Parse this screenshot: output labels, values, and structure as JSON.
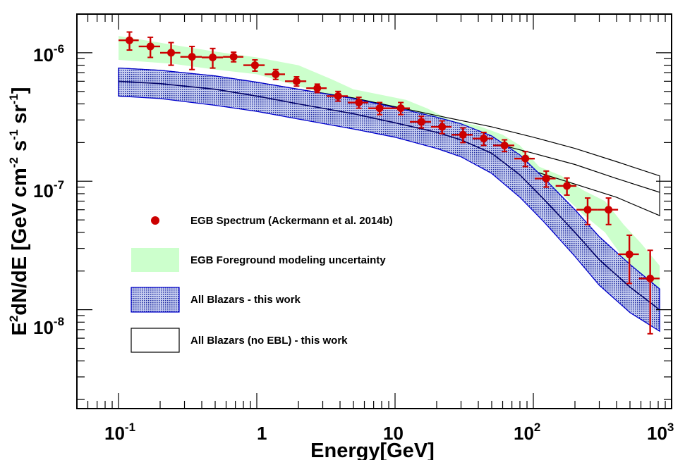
{
  "chart_data": {
    "type": "scatter",
    "title": "",
    "xlabel": "Energy[GeV]",
    "ylabel": {
      "base": "E",
      "sup1": "2",
      "mid1": "dN/dE [GeV cm",
      "sup2": "-2",
      "mid2": " s",
      "sup3": "-1",
      "mid3": " sr",
      "sup4": "-1",
      "end": "]"
    },
    "xscale": "log",
    "yscale": "log",
    "xlim": [
      0.05,
      1000
    ],
    "ylim": [
      1.7e-09,
      2e-06
    ],
    "grid": false,
    "legend_position": "left",
    "x_tick_labels": [
      {
        "value": 0.1,
        "base": "10",
        "exp": "-1"
      },
      {
        "value": 1,
        "base": "1",
        "exp": ""
      },
      {
        "value": 10,
        "base": "10",
        "exp": ""
      },
      {
        "value": 100,
        "base": "10",
        "exp": "2"
      },
      {
        "value": 1000,
        "base": "10",
        "exp": "3"
      }
    ],
    "y_tick_labels": [
      {
        "value": 1e-08,
        "base": "10",
        "exp": "-8"
      },
      {
        "value": 1e-07,
        "base": "10",
        "exp": "-7"
      },
      {
        "value": 1e-06,
        "base": "10",
        "exp": "-6"
      }
    ],
    "colors": {
      "data_points": "#cc0000",
      "foreground_band": "#ccffcc",
      "blazar_band_fill": "#7f8fd0",
      "blazar_band_edge": "#0000cc",
      "blazar_band_center": "#000066",
      "no_ebl_band": "#000000"
    },
    "series": [
      {
        "name": "EGB Spectrum (Ackermann et al. 2014b)",
        "kind": "points",
        "points": [
          {
            "x": 0.12,
            "y": 1.25e-06,
            "xlo": 0.1,
            "xhi": 0.14,
            "ylo": 1.05e-06,
            "yhi": 1.45e-06
          },
          {
            "x": 0.17,
            "y": 1.12e-06,
            "xlo": 0.14,
            "xhi": 0.2,
            "ylo": 9.2e-07,
            "yhi": 1.32e-06
          },
          {
            "x": 0.24,
            "y": 1e-06,
            "xlo": 0.2,
            "xhi": 0.28,
            "ylo": 8e-07,
            "yhi": 1.2e-06
          },
          {
            "x": 0.34,
            "y": 9.3e-07,
            "xlo": 0.28,
            "xhi": 0.4,
            "ylo": 7.4e-07,
            "yhi": 1.12e-06
          },
          {
            "x": 0.48,
            "y": 9.2e-07,
            "xlo": 0.4,
            "xhi": 0.57,
            "ylo": 7.6e-07,
            "yhi": 1.08e-06
          },
          {
            "x": 0.68,
            "y": 9.3e-07,
            "xlo": 0.57,
            "xhi": 0.8,
            "ylo": 8.5e-07,
            "yhi": 1.01e-06
          },
          {
            "x": 0.97,
            "y": 8e-07,
            "xlo": 0.8,
            "xhi": 1.14,
            "ylo": 7.2e-07,
            "yhi": 8.8e-07
          },
          {
            "x": 1.37,
            "y": 6.8e-07,
            "xlo": 1.14,
            "xhi": 1.6,
            "ylo": 6.2e-07,
            "yhi": 7.4e-07
          },
          {
            "x": 1.94,
            "y": 6e-07,
            "xlo": 1.6,
            "xhi": 2.28,
            "ylo": 5.5e-07,
            "yhi": 6.5e-07
          },
          {
            "x": 2.74,
            "y": 5.3e-07,
            "xlo": 2.28,
            "xhi": 3.2,
            "ylo": 4.9e-07,
            "yhi": 5.7e-07
          },
          {
            "x": 3.87,
            "y": 4.6e-07,
            "xlo": 3.2,
            "xhi": 4.55,
            "ylo": 4.2e-07,
            "yhi": 5e-07
          },
          {
            "x": 5.47,
            "y": 4.1e-07,
            "xlo": 4.55,
            "xhi": 6.4,
            "ylo": 3.7e-07,
            "yhi": 4.5e-07
          },
          {
            "x": 7.73,
            "y": 3.7e-07,
            "xlo": 6.4,
            "xhi": 9.1,
            "ylo": 3.3e-07,
            "yhi": 4.1e-07
          },
          {
            "x": 11.0,
            "y": 3.7e-07,
            "xlo": 9.1,
            "xhi": 12.8,
            "ylo": 3.3e-07,
            "yhi": 4.1e-07
          },
          {
            "x": 15.5,
            "y": 2.9e-07,
            "xlo": 12.8,
            "xhi": 18.2,
            "ylo": 2.6e-07,
            "yhi": 3.2e-07
          },
          {
            "x": 21.9,
            "y": 2.65e-07,
            "xlo": 18.2,
            "xhi": 25.6,
            "ylo": 2.35e-07,
            "yhi": 2.95e-07
          },
          {
            "x": 31.0,
            "y": 2.3e-07,
            "xlo": 25.6,
            "xhi": 36.4,
            "ylo": 2e-07,
            "yhi": 2.6e-07
          },
          {
            "x": 43.8,
            "y": 2.15e-07,
            "xlo": 36.4,
            "xhi": 51.2,
            "ylo": 1.9e-07,
            "yhi": 2.4e-07
          },
          {
            "x": 61.9,
            "y": 1.9e-07,
            "xlo": 51.2,
            "xhi": 72.8,
            "ylo": 1.7e-07,
            "yhi": 2.1e-07
          },
          {
            "x": 87.5,
            "y": 1.5e-07,
            "xlo": 72.8,
            "xhi": 102.4,
            "ylo": 1.3e-07,
            "yhi": 1.7e-07
          },
          {
            "x": 124,
            "y": 1.05e-07,
            "xlo": 102.4,
            "xhi": 145,
            "ylo": 9e-08,
            "yhi": 1.2e-07
          },
          {
            "x": 175,
            "y": 9.2e-08,
            "xlo": 145,
            "xhi": 205,
            "ylo": 7.8e-08,
            "yhi": 1.06e-07
          },
          {
            "x": 247,
            "y": 6e-08,
            "xlo": 205,
            "xhi": 290,
            "ylo": 4.6e-08,
            "yhi": 7.4e-08
          },
          {
            "x": 350,
            "y": 6e-08,
            "xlo": 290,
            "xhi": 410,
            "ylo": 4.6e-08,
            "yhi": 7.4e-08
          },
          {
            "x": 495,
            "y": 2.7e-08,
            "xlo": 410,
            "xhi": 580,
            "ylo": 1.6e-08,
            "yhi": 3.8e-08
          },
          {
            "x": 700,
            "y": 1.75e-08,
            "xlo": 580,
            "xhi": 820,
            "ylo": 6.5e-09,
            "yhi": 2.9e-08
          }
        ]
      },
      {
        "name": "EGB Foreground modeling uncertainty",
        "kind": "band",
        "x": [
          0.1,
          0.25,
          0.5,
          1.0,
          2.0,
          3.5,
          5.0,
          8.0,
          12.0,
          17.0,
          25.0,
          40.0,
          60.0,
          80.0,
          110.0,
          160.0,
          230.0,
          330.0,
          450.0,
          600.0,
          820.0
        ],
        "ylo": [
          8.8e-07,
          8.2e-07,
          7.4e-07,
          6.8e-07,
          5.5e-07,
          4.6e-07,
          4e-07,
          3.4e-07,
          3e-07,
          2.7e-07,
          2.4e-07,
          2e-07,
          1.7e-07,
          1.4e-07,
          1e-07,
          8e-08,
          5.5e-08,
          4e-08,
          2.5e-08,
          1.8e-08,
          1.2e-08
        ],
        "yhi": [
          1.35e-06,
          1.15e-06,
          1.02e-06,
          9.2e-07,
          8e-07,
          6.2e-07,
          5.2e-07,
          4.7e-07,
          4.3e-07,
          3.7e-07,
          3e-07,
          2.7e-07,
          2.3e-07,
          1.9e-07,
          1.3e-07,
          1.1e-07,
          8.5e-08,
          7e-08,
          4.6e-08,
          3.3e-08,
          2.2e-08
        ]
      },
      {
        "name": "All Blazars - this work",
        "kind": "band",
        "x": [
          0.1,
          0.2,
          0.5,
          1.0,
          2.0,
          5.0,
          10.0,
          20.0,
          30.0,
          50.0,
          80.0,
          120.0,
          200.0,
          300.0,
          500.0,
          820.0
        ],
        "ylo": [
          4.6e-07,
          4.4e-07,
          3.9e-07,
          3.5e-07,
          3.05e-07,
          2.55e-07,
          2.2e-07,
          1.8e-07,
          1.55e-07,
          1.15e-07,
          7.5e-08,
          4.8e-08,
          2.6e-08,
          1.55e-08,
          9.5e-09,
          6.8e-09
        ],
        "ymid": [
          6e-07,
          5.75e-07,
          5.2e-07,
          4.6e-07,
          4e-07,
          3.35e-07,
          2.85e-07,
          2.4e-07,
          2.1e-07,
          1.65e-07,
          1.12e-07,
          7.2e-08,
          4e-08,
          2.45e-08,
          1.5e-08,
          1e-08
        ],
        "yhi": [
          7.6e-07,
          7.3e-07,
          6.6e-07,
          5.9e-07,
          5.2e-07,
          4.4e-07,
          3.75e-07,
          3.15e-07,
          2.8e-07,
          2.25e-07,
          1.6e-07,
          1.05e-07,
          6e-08,
          3.7e-08,
          2.25e-08,
          1.45e-08
        ]
      },
      {
        "name": "All Blazars (no EBL) - this work",
        "kind": "band",
        "x": [
          0.1,
          0.2,
          0.5,
          1.0,
          2.0,
          5.0,
          10.0,
          20.0,
          50.0,
          100.0,
          200.0,
          400.0,
          820.0
        ],
        "ylo": [
          4.6e-07,
          4.45e-07,
          3.95e-07,
          3.55e-07,
          3.1e-07,
          2.6e-07,
          2.25e-07,
          1.9e-07,
          1.5e-07,
          1.2e-07,
          9.5e-08,
          7.5e-08,
          5.4e-08
        ],
        "ymid": [
          6e-07,
          5.75e-07,
          5.2e-07,
          4.6e-07,
          4e-07,
          3.4e-07,
          2.9e-07,
          2.5e-07,
          2e-07,
          1.65e-07,
          1.35e-07,
          1.05e-07,
          8.2e-08
        ],
        "yhi": [
          7.6e-07,
          7.3e-07,
          6.6e-07,
          5.9e-07,
          5.2e-07,
          4.45e-07,
          3.8e-07,
          3.25e-07,
          2.65e-07,
          2.2e-07,
          1.8e-07,
          1.42e-07,
          1.1e-07
        ]
      }
    ]
  }
}
